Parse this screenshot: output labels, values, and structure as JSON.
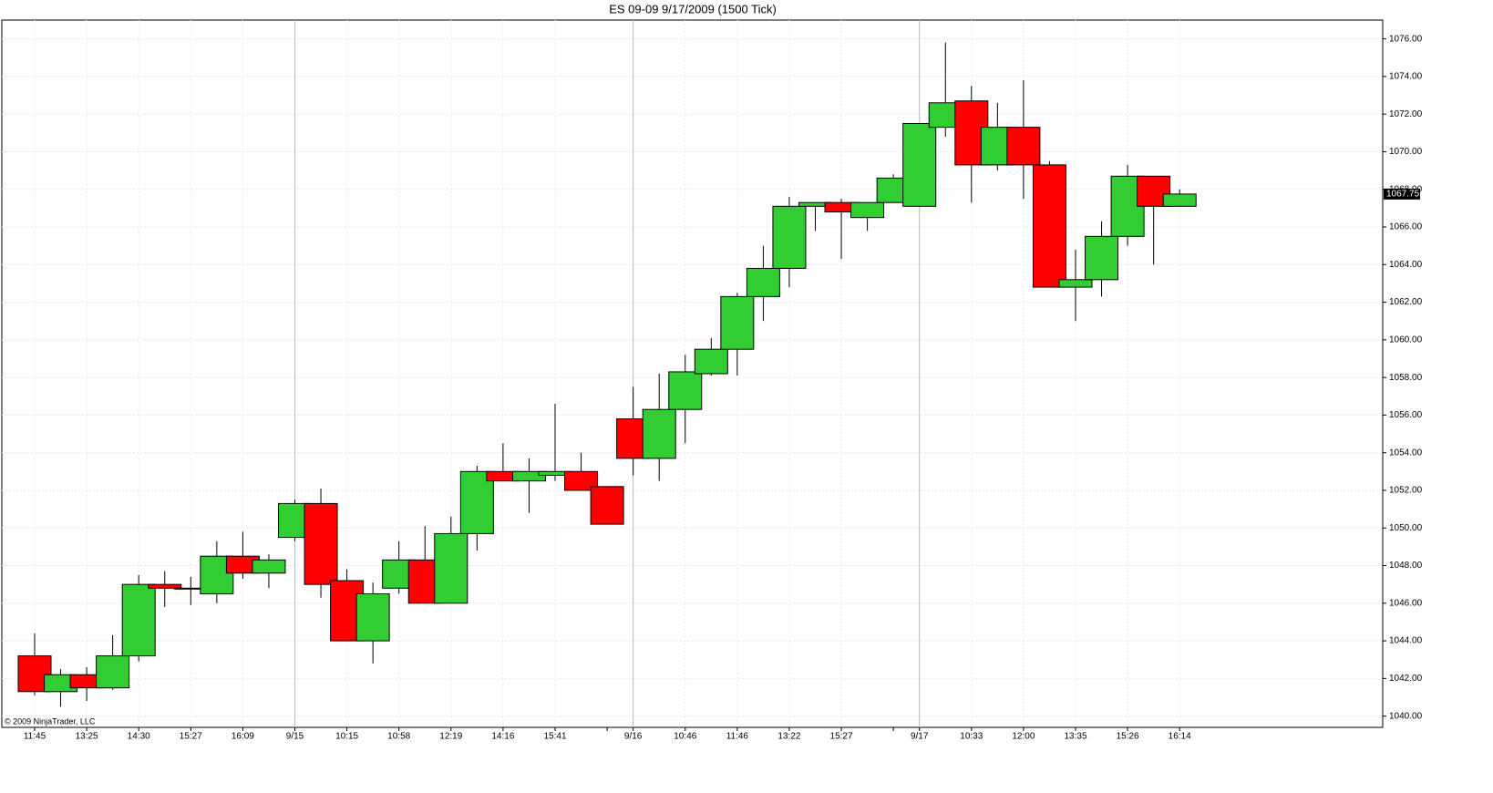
{
  "chart_data": {
    "type": "candlestick",
    "title": "ES 09-09  9/17/2009 (1500 Tick)",
    "copyright": "© 2009 NinjaTrader, LLC",
    "up_color": "#32cd32",
    "down_color": "#ff0000",
    "grid": true,
    "categories": [
      "11:45",
      null,
      "13:25",
      null,
      "14:30",
      null,
      "15:27",
      null,
      "16:09",
      null,
      "9/15",
      null,
      "10:15",
      null,
      "10:58",
      null,
      "12:19",
      null,
      "14:16",
      null,
      "15:41",
      null,
      null,
      "9/16",
      null,
      "10:46",
      null,
      "11:46",
      null,
      "13:22",
      null,
      "15:27",
      null,
      null,
      "9/17",
      null,
      "10:33",
      null,
      "12:00",
      null,
      "13:35",
      null,
      "15:26",
      null,
      "16:14"
    ],
    "open": [
      1043.2,
      1041.3,
      1042.2,
      1041.5,
      1043.2,
      1047.0,
      1046.8,
      1046.5,
      1048.5,
      1047.6,
      1049.5,
      1051.3,
      1047.2,
      1044.0,
      1046.8,
      1048.3,
      1046.0,
      1049.7,
      1053.0,
      1052.5,
      1052.8,
      1053.0,
      1052.2,
      1055.8,
      1053.7,
      1056.3,
      1058.2,
      1059.5,
      1062.3,
      1063.8,
      1067.1,
      1067.3,
      1066.5,
      1067.3,
      1067.1,
      1071.3,
      1072.7,
      1069.3,
      1071.3,
      1069.3,
      1062.8,
      1063.2,
      1065.5,
      1068.7,
      1067.1
    ],
    "high": [
      1044.4,
      1042.5,
      1042.6,
      1044.3,
      1047.5,
      1047.7,
      1047.4,
      1049.3,
      1049.8,
      1048.6,
      1051.5,
      1052.1,
      1047.8,
      1047.1,
      1049.3,
      1050.1,
      1050.6,
      1053.3,
      1054.5,
      1053.7,
      1056.6,
      1054.0,
      1052.2,
      1057.5,
      1058.2,
      1059.2,
      1060.1,
      1062.5,
      1065.0,
      1067.6,
      1067.3,
      1067.5,
      1067.3,
      1068.8,
      1071.5,
      1075.8,
      1073.5,
      1072.6,
      1073.8,
      1069.5,
      1064.8,
      1066.3,
      1069.3,
      1068.7,
      1068.0
    ],
    "low": [
      1041.1,
      1040.5,
      1040.8,
      1041.4,
      1042.9,
      1045.8,
      1045.9,
      1046.0,
      1047.3,
      1046.8,
      1049.3,
      1046.3,
      1044.0,
      1042.8,
      1046.5,
      1046.0,
      1046.0,
      1048.8,
      1052.5,
      1050.8,
      1052.5,
      1052.0,
      1050.2,
      1052.8,
      1052.5,
      1054.5,
      1058.1,
      1058.1,
      1061.0,
      1062.8,
      1065.8,
      1064.3,
      1065.8,
      1067.3,
      1067.1,
      1070.8,
      1067.3,
      1069.0,
      1067.5,
      1062.8,
      1061.0,
      1062.3,
      1065.0,
      1064.0,
      1067.1
    ],
    "close": [
      1041.3,
      1042.2,
      1041.5,
      1043.2,
      1047.0,
      1046.8,
      1046.8,
      1048.5,
      1047.6,
      1048.3,
      1051.3,
      1047.0,
      1044.0,
      1046.5,
      1048.3,
      1046.0,
      1049.7,
      1053.0,
      1052.5,
      1053.0,
      1053.0,
      1052.0,
      1050.2,
      1053.7,
      1056.3,
      1058.3,
      1059.5,
      1062.3,
      1063.8,
      1067.1,
      1067.3,
      1066.8,
      1067.3,
      1068.6,
      1071.5,
      1072.6,
      1069.3,
      1071.3,
      1069.3,
      1062.8,
      1063.2,
      1065.5,
      1068.7,
      1067.1,
      1067.75
    ],
    "ylim": [
      1039.4,
      1077
    ],
    "yticks": [
      {
        "value": 1040,
        "label": "1040.00"
      },
      {
        "value": 1042,
        "label": "1042.00"
      },
      {
        "value": 1044,
        "label": "1044.00"
      },
      {
        "value": 1046,
        "label": "1046.00"
      },
      {
        "value": 1048,
        "label": "1048.00"
      },
      {
        "value": 1050,
        "label": "1050.00"
      },
      {
        "value": 1052,
        "label": "1052.00"
      },
      {
        "value": 1054,
        "label": "1054.00"
      },
      {
        "value": 1056,
        "label": "1056.00"
      },
      {
        "value": 1058,
        "label": "1058.00"
      },
      {
        "value": 1060,
        "label": "1060.00"
      },
      {
        "value": 1062,
        "label": "1062.00"
      },
      {
        "value": 1064,
        "label": "1064.00"
      },
      {
        "value": 1066,
        "label": "1066.00"
      },
      {
        "value": 1068,
        "label": "1068.00"
      },
      {
        "value": 1070,
        "label": "1070.00"
      },
      {
        "value": 1072,
        "label": "1072.00"
      },
      {
        "value": 1074,
        "label": "1074.00"
      },
      {
        "value": 1076,
        "label": "1076.00"
      }
    ]
  }
}
